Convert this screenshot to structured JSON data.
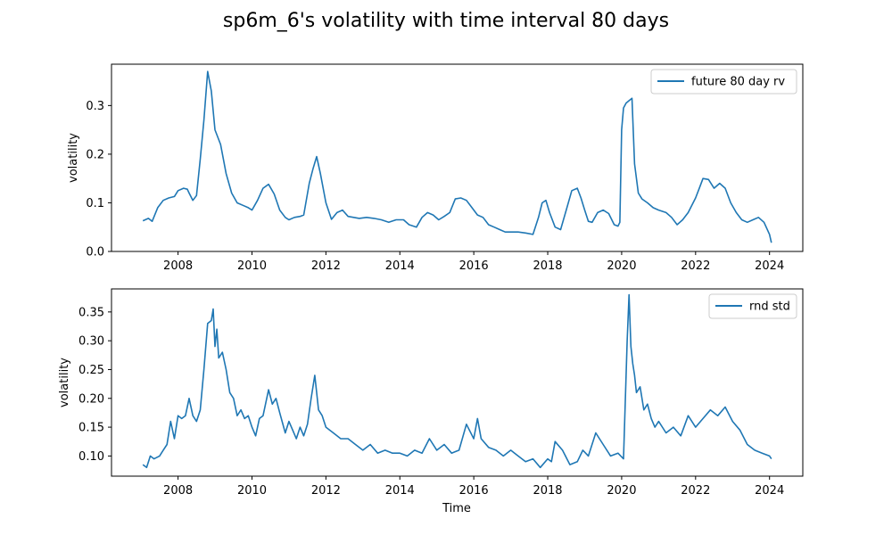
{
  "figure": {
    "title": "sp6m_6's volatility with time interval 80 days"
  },
  "chart_data": [
    {
      "type": "line",
      "title": "",
      "xlabel": "",
      "ylabel": "volatility",
      "xlim": [
        2006.2,
        2024.9
      ],
      "ylim": [
        0.0,
        0.385
      ],
      "x_ticks": [
        2008,
        2010,
        2012,
        2014,
        2016,
        2018,
        2020,
        2022,
        2024
      ],
      "x_tick_labels": [
        "2008",
        "2010",
        "2012",
        "2014",
        "2016",
        "2018",
        "2020",
        "2022",
        "2024"
      ],
      "y_ticks": [
        0.0,
        0.1,
        0.2,
        0.3
      ],
      "y_tick_labels": [
        "0.0",
        "0.1",
        "0.2",
        "0.3"
      ],
      "grid": false,
      "legend_position": "upper right",
      "color": "#1f77b4",
      "series": [
        {
          "name": "future 80 day rv",
          "x": [
            2007.05,
            2007.2,
            2007.3,
            2007.45,
            2007.6,
            2007.75,
            2007.9,
            2008.0,
            2008.15,
            2008.25,
            2008.3,
            2008.4,
            2008.5,
            2008.6,
            2008.7,
            2008.8,
            2008.9,
            2009.0,
            2009.15,
            2009.3,
            2009.45,
            2009.6,
            2009.75,
            2009.9,
            2010.0,
            2010.15,
            2010.3,
            2010.45,
            2010.6,
            2010.75,
            2010.9,
            2011.0,
            2011.15,
            2011.3,
            2011.4,
            2011.55,
            2011.65,
            2011.75,
            2011.85,
            2011.95,
            2012.0,
            2012.15,
            2012.3,
            2012.45,
            2012.6,
            2012.75,
            2012.9,
            2013.1,
            2013.3,
            2013.5,
            2013.7,
            2013.9,
            2014.1,
            2014.25,
            2014.45,
            2014.6,
            2014.75,
            2014.9,
            2015.05,
            2015.2,
            2015.35,
            2015.5,
            2015.65,
            2015.8,
            2015.95,
            2016.1,
            2016.25,
            2016.4,
            2016.55,
            2016.7,
            2016.85,
            2017.0,
            2017.2,
            2017.4,
            2017.6,
            2017.75,
            2017.85,
            2017.95,
            2018.05,
            2018.2,
            2018.35,
            2018.5,
            2018.65,
            2018.8,
            2018.9,
            2019.0,
            2019.1,
            2019.2,
            2019.35,
            2019.5,
            2019.65,
            2019.8,
            2019.9,
            2019.95,
            2020.0,
            2020.05,
            2020.12,
            2020.2,
            2020.28,
            2020.35,
            2020.45,
            2020.55,
            2020.7,
            2020.85,
            2021.0,
            2021.2,
            2021.35,
            2021.5,
            2021.65,
            2021.8,
            2022.0,
            2022.1,
            2022.2,
            2022.35,
            2022.5,
            2022.65,
            2022.8,
            2022.95,
            2023.1,
            2023.25,
            2023.4,
            2023.55,
            2023.7,
            2023.85,
            2024.0,
            2024.05
          ],
          "y": [
            0.063,
            0.068,
            0.062,
            0.09,
            0.105,
            0.11,
            0.113,
            0.125,
            0.13,
            0.128,
            0.12,
            0.105,
            0.115,
            0.19,
            0.27,
            0.37,
            0.33,
            0.25,
            0.22,
            0.16,
            0.12,
            0.1,
            0.095,
            0.09,
            0.085,
            0.105,
            0.13,
            0.138,
            0.118,
            0.085,
            0.07,
            0.065,
            0.07,
            0.072,
            0.075,
            0.14,
            0.17,
            0.195,
            0.16,
            0.12,
            0.1,
            0.066,
            0.08,
            0.085,
            0.072,
            0.07,
            0.068,
            0.07,
            0.068,
            0.065,
            0.06,
            0.065,
            0.065,
            0.055,
            0.05,
            0.07,
            0.08,
            0.075,
            0.065,
            0.072,
            0.08,
            0.108,
            0.11,
            0.105,
            0.09,
            0.075,
            0.07,
            0.055,
            0.05,
            0.045,
            0.04,
            0.04,
            0.04,
            0.038,
            0.035,
            0.07,
            0.1,
            0.105,
            0.08,
            0.05,
            0.045,
            0.085,
            0.125,
            0.13,
            0.11,
            0.085,
            0.062,
            0.06,
            0.08,
            0.085,
            0.078,
            0.055,
            0.052,
            0.06,
            0.25,
            0.295,
            0.305,
            0.31,
            0.315,
            0.18,
            0.12,
            0.108,
            0.1,
            0.09,
            0.085,
            0.08,
            0.07,
            0.055,
            0.065,
            0.08,
            0.11,
            0.13,
            0.15,
            0.148,
            0.13,
            0.14,
            0.13,
            0.1,
            0.08,
            0.065,
            0.06,
            0.065,
            0.07,
            0.06,
            0.035,
            0.018
          ]
        }
      ]
    },
    {
      "type": "line",
      "title": "",
      "xlabel": "Time",
      "ylabel": "volatility",
      "xlim": [
        2006.2,
        2024.9
      ],
      "ylim": [
        0.065,
        0.39
      ],
      "x_ticks": [
        2008,
        2010,
        2012,
        2014,
        2016,
        2018,
        2020,
        2022,
        2024
      ],
      "x_tick_labels": [
        "2008",
        "2010",
        "2012",
        "2014",
        "2016",
        "2018",
        "2020",
        "2022",
        "2024"
      ],
      "y_ticks": [
        0.1,
        0.15,
        0.2,
        0.25,
        0.3,
        0.35
      ],
      "y_tick_labels": [
        "0.10",
        "0.15",
        "0.20",
        "0.25",
        "0.30",
        "0.35"
      ],
      "grid": false,
      "legend_position": "upper right",
      "color": "#1f77b4",
      "series": [
        {
          "name": "rnd std",
          "x": [
            2007.05,
            2007.15,
            2007.25,
            2007.35,
            2007.5,
            2007.6,
            2007.7,
            2007.8,
            2007.9,
            2008.0,
            2008.1,
            2008.2,
            2008.3,
            2008.4,
            2008.5,
            2008.6,
            2008.7,
            2008.8,
            2008.9,
            2008.95,
            2009.0,
            2009.05,
            2009.1,
            2009.2,
            2009.3,
            2009.4,
            2009.5,
            2009.6,
            2009.7,
            2009.8,
            2009.9,
            2010.0,
            2010.1,
            2010.2,
            2010.3,
            2010.45,
            2010.55,
            2010.65,
            2010.75,
            2010.9,
            2011.0,
            2011.1,
            2011.2,
            2011.3,
            2011.4,
            2011.5,
            2011.6,
            2011.7,
            2011.8,
            2011.9,
            2012.0,
            2012.2,
            2012.4,
            2012.6,
            2012.8,
            2013.0,
            2013.2,
            2013.4,
            2013.6,
            2013.8,
            2014.0,
            2014.2,
            2014.4,
            2014.6,
            2014.8,
            2015.0,
            2015.2,
            2015.4,
            2015.6,
            2015.8,
            2016.0,
            2016.1,
            2016.2,
            2016.4,
            2016.6,
            2016.8,
            2017.0,
            2017.2,
            2017.4,
            2017.6,
            2017.8,
            2018.0,
            2018.1,
            2018.2,
            2018.4,
            2018.6,
            2018.8,
            2018.95,
            2019.1,
            2019.3,
            2019.5,
            2019.7,
            2019.9,
            2020.05,
            2020.15,
            2020.2,
            2020.25,
            2020.3,
            2020.35,
            2020.4,
            2020.5,
            2020.6,
            2020.7,
            2020.8,
            2020.9,
            2021.0,
            2021.2,
            2021.4,
            2021.6,
            2021.8,
            2022.0,
            2022.2,
            2022.4,
            2022.6,
            2022.8,
            2023.0,
            2023.2,
            2023.4,
            2023.6,
            2023.8,
            2024.0,
            2024.05
          ],
          "y": [
            0.085,
            0.08,
            0.1,
            0.095,
            0.1,
            0.11,
            0.12,
            0.16,
            0.13,
            0.17,
            0.165,
            0.17,
            0.2,
            0.17,
            0.16,
            0.18,
            0.25,
            0.33,
            0.335,
            0.355,
            0.29,
            0.32,
            0.27,
            0.28,
            0.25,
            0.21,
            0.2,
            0.17,
            0.18,
            0.165,
            0.17,
            0.15,
            0.135,
            0.165,
            0.17,
            0.215,
            0.19,
            0.2,
            0.175,
            0.14,
            0.16,
            0.145,
            0.13,
            0.15,
            0.135,
            0.155,
            0.2,
            0.24,
            0.18,
            0.17,
            0.15,
            0.14,
            0.13,
            0.13,
            0.12,
            0.11,
            0.12,
            0.105,
            0.11,
            0.105,
            0.105,
            0.1,
            0.11,
            0.105,
            0.13,
            0.11,
            0.12,
            0.105,
            0.11,
            0.155,
            0.13,
            0.165,
            0.13,
            0.115,
            0.11,
            0.1,
            0.11,
            0.1,
            0.09,
            0.095,
            0.08,
            0.095,
            0.09,
            0.125,
            0.11,
            0.085,
            0.09,
            0.11,
            0.1,
            0.14,
            0.12,
            0.1,
            0.105,
            0.095,
            0.3,
            0.38,
            0.29,
            0.26,
            0.24,
            0.21,
            0.22,
            0.18,
            0.19,
            0.165,
            0.15,
            0.16,
            0.14,
            0.15,
            0.135,
            0.17,
            0.15,
            0.165,
            0.18,
            0.17,
            0.185,
            0.16,
            0.145,
            0.12,
            0.11,
            0.105,
            0.1,
            0.095
          ]
        }
      ]
    }
  ]
}
